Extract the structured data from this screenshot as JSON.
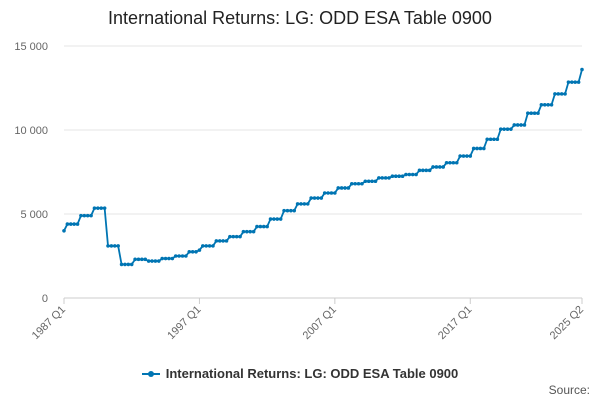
{
  "colors": {
    "series": "#0075b3",
    "grid": "#e6e6e6",
    "axis": "#cccccc"
  },
  "source_label": "Source:",
  "chart_data": {
    "type": "line",
    "title": "International Returns: LG: ODD ESA Table 0900",
    "xlabel": "",
    "ylabel": "",
    "ylim": [
      0,
      15000
    ],
    "yticks": [
      0,
      5000,
      10000,
      15000
    ],
    "ytick_labels": [
      "0",
      "5 000",
      "10 000",
      "15 000"
    ],
    "xlim": [
      "1987 Q1",
      "2025 Q2"
    ],
    "xtick_labels": [
      "1987 Q1",
      "1997 Q1",
      "2007 Q1",
      "2017 Q1",
      "2025 Q2"
    ],
    "grid": true,
    "legend": "bottom",
    "series": [
      {
        "name": "International Returns: LG: ODD ESA Table 0900",
        "points": [
          [
            "1987 Q1",
            4000
          ],
          [
            "1987 Q2",
            4400
          ],
          [
            "1987 Q3",
            4400
          ],
          [
            "1987 Q4",
            4400
          ],
          [
            "1988 Q1",
            4400
          ],
          [
            "1988 Q2",
            4900
          ],
          [
            "1988 Q3",
            4900
          ],
          [
            "1988 Q4",
            4900
          ],
          [
            "1989 Q1",
            4900
          ],
          [
            "1989 Q2",
            5350
          ],
          [
            "1989 Q3",
            5350
          ],
          [
            "1989 Q4",
            5350
          ],
          [
            "1990 Q1",
            5350
          ],
          [
            "1990 Q2",
            3100
          ],
          [
            "1990 Q3",
            3100
          ],
          [
            "1990 Q4",
            3100
          ],
          [
            "1991 Q1",
            3100
          ],
          [
            "1991 Q2",
            2000
          ],
          [
            "1991 Q3",
            2000
          ],
          [
            "1991 Q4",
            2000
          ],
          [
            "1992 Q1",
            2000
          ],
          [
            "1992 Q2",
            2300
          ],
          [
            "1992 Q3",
            2300
          ],
          [
            "1992 Q4",
            2300
          ],
          [
            "1993 Q1",
            2300
          ],
          [
            "1993 Q2",
            2200
          ],
          [
            "1993 Q3",
            2200
          ],
          [
            "1993 Q4",
            2200
          ],
          [
            "1994 Q1",
            2200
          ],
          [
            "1994 Q2",
            2350
          ],
          [
            "1994 Q3",
            2350
          ],
          [
            "1994 Q4",
            2350
          ],
          [
            "1995 Q1",
            2350
          ],
          [
            "1995 Q2",
            2500
          ],
          [
            "1995 Q3",
            2500
          ],
          [
            "1995 Q4",
            2500
          ],
          [
            "1996 Q1",
            2500
          ],
          [
            "1996 Q2",
            2750
          ],
          [
            "1996 Q3",
            2750
          ],
          [
            "1996 Q4",
            2750
          ],
          [
            "1997 Q1",
            2850
          ],
          [
            "1997 Q2",
            3100
          ],
          [
            "1997 Q3",
            3100
          ],
          [
            "1997 Q4",
            3100
          ],
          [
            "1998 Q1",
            3100
          ],
          [
            "1998 Q2",
            3400
          ],
          [
            "1998 Q3",
            3400
          ],
          [
            "1998 Q4",
            3400
          ],
          [
            "1999 Q1",
            3400
          ],
          [
            "1999 Q2",
            3650
          ],
          [
            "1999 Q3",
            3650
          ],
          [
            "1999 Q4",
            3650
          ],
          [
            "2000 Q1",
            3650
          ],
          [
            "2000 Q2",
            3950
          ],
          [
            "2000 Q3",
            3950
          ],
          [
            "2000 Q4",
            3950
          ],
          [
            "2001 Q1",
            3950
          ],
          [
            "2001 Q2",
            4250
          ],
          [
            "2001 Q3",
            4250
          ],
          [
            "2001 Q4",
            4250
          ],
          [
            "2002 Q1",
            4250
          ],
          [
            "2002 Q2",
            4700
          ],
          [
            "2002 Q3",
            4700
          ],
          [
            "2002 Q4",
            4700
          ],
          [
            "2003 Q1",
            4700
          ],
          [
            "2003 Q2",
            5200
          ],
          [
            "2003 Q3",
            5200
          ],
          [
            "2003 Q4",
            5200
          ],
          [
            "2004 Q1",
            5200
          ],
          [
            "2004 Q2",
            5600
          ],
          [
            "2004 Q3",
            5600
          ],
          [
            "2004 Q4",
            5600
          ],
          [
            "2005 Q1",
            5600
          ],
          [
            "2005 Q2",
            5950
          ],
          [
            "2005 Q3",
            5950
          ],
          [
            "2005 Q4",
            5950
          ],
          [
            "2006 Q1",
            5950
          ],
          [
            "2006 Q2",
            6250
          ],
          [
            "2006 Q3",
            6250
          ],
          [
            "2006 Q4",
            6250
          ],
          [
            "2007 Q1",
            6250
          ],
          [
            "2007 Q2",
            6550
          ],
          [
            "2007 Q3",
            6550
          ],
          [
            "2007 Q4",
            6550
          ],
          [
            "2008 Q1",
            6550
          ],
          [
            "2008 Q2",
            6800
          ],
          [
            "2008 Q3",
            6800
          ],
          [
            "2008 Q4",
            6800
          ],
          [
            "2009 Q1",
            6800
          ],
          [
            "2009 Q2",
            6950
          ],
          [
            "2009 Q3",
            6950
          ],
          [
            "2009 Q4",
            6950
          ],
          [
            "2010 Q1",
            6950
          ],
          [
            "2010 Q2",
            7150
          ],
          [
            "2010 Q3",
            7150
          ],
          [
            "2010 Q4",
            7150
          ],
          [
            "2011 Q1",
            7150
          ],
          [
            "2011 Q2",
            7250
          ],
          [
            "2011 Q3",
            7250
          ],
          [
            "2011 Q4",
            7250
          ],
          [
            "2012 Q1",
            7250
          ],
          [
            "2012 Q2",
            7350
          ],
          [
            "2012 Q3",
            7350
          ],
          [
            "2012 Q4",
            7350
          ],
          [
            "2013 Q1",
            7350
          ],
          [
            "2013 Q2",
            7600
          ],
          [
            "2013 Q3",
            7600
          ],
          [
            "2013 Q4",
            7600
          ],
          [
            "2014 Q1",
            7600
          ],
          [
            "2014 Q2",
            7800
          ],
          [
            "2014 Q3",
            7800
          ],
          [
            "2014 Q4",
            7800
          ],
          [
            "2015 Q1",
            7800
          ],
          [
            "2015 Q2",
            8050
          ],
          [
            "2015 Q3",
            8050
          ],
          [
            "2015 Q4",
            8050
          ],
          [
            "2016 Q1",
            8050
          ],
          [
            "2016 Q2",
            8450
          ],
          [
            "2016 Q3",
            8450
          ],
          [
            "2016 Q4",
            8450
          ],
          [
            "2017 Q1",
            8450
          ],
          [
            "2017 Q2",
            8900
          ],
          [
            "2017 Q3",
            8900
          ],
          [
            "2017 Q4",
            8900
          ],
          [
            "2018 Q1",
            8900
          ],
          [
            "2018 Q2",
            9450
          ],
          [
            "2018 Q3",
            9450
          ],
          [
            "2018 Q4",
            9450
          ],
          [
            "2019 Q1",
            9450
          ],
          [
            "2019 Q2",
            10050
          ],
          [
            "2019 Q3",
            10050
          ],
          [
            "2019 Q4",
            10050
          ],
          [
            "2020 Q1",
            10050
          ],
          [
            "2020 Q2",
            10300
          ],
          [
            "2020 Q3",
            10300
          ],
          [
            "2020 Q4",
            10300
          ],
          [
            "2021 Q1",
            10300
          ],
          [
            "2021 Q2",
            11000
          ],
          [
            "2021 Q3",
            11000
          ],
          [
            "2021 Q4",
            11000
          ],
          [
            "2022 Q1",
            11000
          ],
          [
            "2022 Q2",
            11500
          ],
          [
            "2022 Q3",
            11500
          ],
          [
            "2022 Q4",
            11500
          ],
          [
            "2023 Q1",
            11500
          ],
          [
            "2023 Q2",
            12150
          ],
          [
            "2023 Q3",
            12150
          ],
          [
            "2023 Q4",
            12150
          ],
          [
            "2024 Q1",
            12150
          ],
          [
            "2024 Q2",
            12850
          ],
          [
            "2024 Q3",
            12850
          ],
          [
            "2024 Q4",
            12850
          ],
          [
            "2025 Q1",
            12850
          ],
          [
            "2025 Q2",
            13600
          ]
        ]
      }
    ]
  }
}
